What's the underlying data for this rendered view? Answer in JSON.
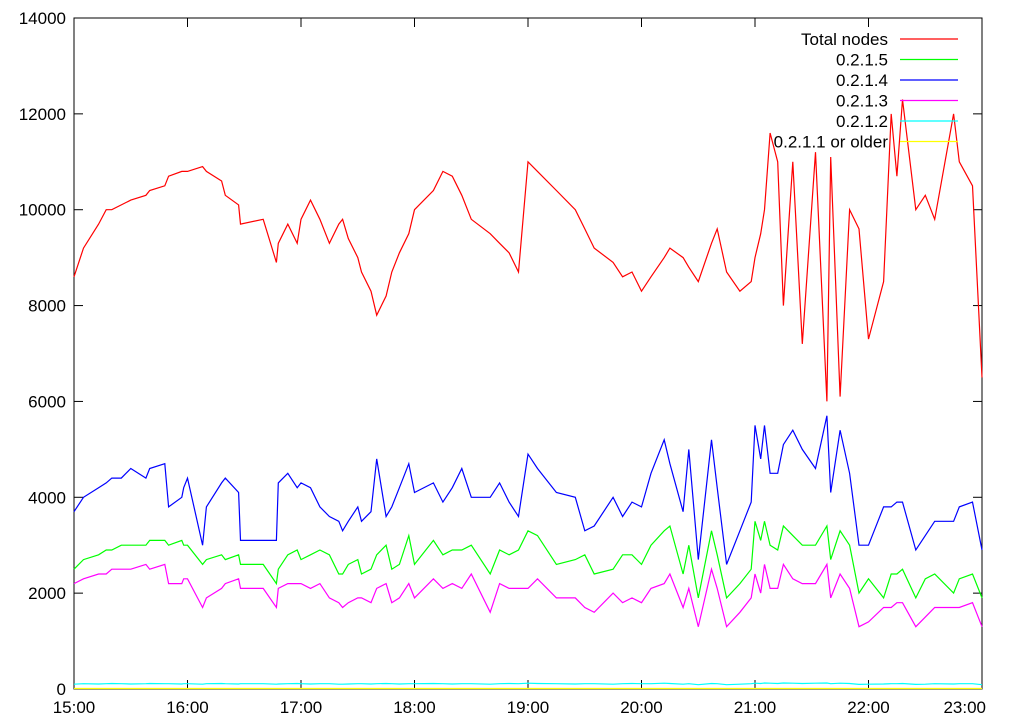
{
  "chart_data": {
    "type": "line",
    "title": "",
    "xlabel": "",
    "ylabel": "",
    "xlim": [
      "15:00",
      "23:00"
    ],
    "ylim": [
      0,
      14000
    ],
    "x_ticks": [
      "15:00",
      "16:00",
      "17:00",
      "18:00",
      "19:00",
      "20:00",
      "21:00",
      "22:00",
      "23:00"
    ],
    "y_ticks": [
      0,
      2000,
      4000,
      6000,
      8000,
      10000,
      12000,
      14000
    ],
    "grid": false,
    "legend_position": "top-right",
    "x": [
      "15:00",
      "15:05",
      "15:13",
      "15:17",
      "15:20",
      "15:25",
      "15:30",
      "15:38",
      "15:40",
      "15:48",
      "15:50",
      "15:57",
      "15:58",
      "16:00",
      "16:08",
      "16:10",
      "16:18",
      "16:20",
      "16:27",
      "16:28",
      "16:40",
      "16:47",
      "16:48",
      "16:53",
      "16:58",
      "17:00",
      "17:05",
      "17:10",
      "17:15",
      "17:20",
      "17:22",
      "17:25",
      "17:30",
      "17:32",
      "17:37",
      "17:40",
      "17:45",
      "17:48",
      "17:52",
      "17:57",
      "18:00",
      "18:10",
      "18:15",
      "18:20",
      "18:25",
      "18:30",
      "18:40",
      "18:45",
      "18:50",
      "18:55",
      "19:00",
      "19:05",
      "19:15",
      "19:25",
      "19:30",
      "19:35",
      "19:45",
      "19:50",
      "19:55",
      "20:00",
      "20:05",
      "20:12",
      "20:15",
      "20:22",
      "20:25",
      "20:30",
      "20:37",
      "20:40",
      "20:45",
      "20:52",
      "20:58",
      "21:00",
      "21:03",
      "21:05",
      "21:08",
      "21:12",
      "21:15",
      "21:20",
      "21:25",
      "21:32",
      "21:38",
      "21:40",
      "21:45",
      "21:50",
      "21:55",
      "22:00",
      "22:08",
      "22:12",
      "22:15",
      "22:18",
      "22:25",
      "22:30",
      "22:35",
      "22:45",
      "22:48",
      "22:55",
      "23:00"
    ],
    "series": [
      {
        "name": "Total nodes",
        "color": "#ff0000",
        "values": [
          8600,
          9200,
          9700,
          10000,
          10000,
          10100,
          10200,
          10300,
          10400,
          10500,
          10700,
          10800,
          10800,
          10800,
          10900,
          10800,
          10600,
          10300,
          10100,
          9700,
          9800,
          8900,
          9300,
          9700,
          9300,
          9800,
          10200,
          9800,
          9300,
          9700,
          9800,
          9400,
          9000,
          8700,
          8300,
          7800,
          8200,
          8700,
          9100,
          9500,
          10000,
          10400,
          10800,
          10700,
          10300,
          9800,
          9500,
          9300,
          9100,
          8700,
          11000,
          10800,
          10400,
          10000,
          9600,
          9200,
          8900,
          8600,
          8700,
          8300,
          8600,
          9000,
          9200,
          9000,
          8800,
          8500,
          9300,
          9600,
          8700,
          8300,
          8500,
          9000,
          9500,
          10000,
          11600,
          11000,
          8000,
          11000,
          7200,
          11200,
          6000,
          11100,
          6100,
          10000,
          9600,
          7300,
          8500,
          12000,
          10700,
          12300,
          10000,
          10300,
          9800,
          12000,
          11000,
          10500,
          6500
        ]
      },
      {
        "name": "0.2.1.5",
        "color": "#00ff00",
        "values": [
          2500,
          2700,
          2800,
          2900,
          2900,
          3000,
          3000,
          3000,
          3100,
          3100,
          3000,
          3100,
          3000,
          3000,
          2600,
          2700,
          2800,
          2700,
          2800,
          2600,
          2600,
          2200,
          2500,
          2800,
          2900,
          2700,
          2800,
          2900,
          2800,
          2400,
          2400,
          2600,
          2700,
          2400,
          2500,
          2800,
          3000,
          2500,
          2600,
          3200,
          2600,
          3100,
          2800,
          2900,
          2900,
          3000,
          2400,
          2900,
          2800,
          2900,
          3300,
          3200,
          2600,
          2700,
          2800,
          2400,
          2500,
          2800,
          2800,
          2600,
          3000,
          3300,
          3400,
          2400,
          3000,
          1900,
          3300,
          2800,
          1900,
          2200,
          2500,
          3500,
          3100,
          3500,
          3000,
          2900,
          3400,
          3200,
          3000,
          3000,
          3400,
          2700,
          3300,
          3000,
          2000,
          2300,
          1900,
          2400,
          2400,
          2500,
          1900,
          2300,
          2400,
          2000,
          2300,
          2400,
          1900
        ]
      },
      {
        "name": "0.2.1.4",
        "color": "#0000ff",
        "values": [
          3700,
          4000,
          4200,
          4300,
          4400,
          4400,
          4600,
          4400,
          4600,
          4700,
          3800,
          4000,
          4200,
          4400,
          3000,
          3800,
          4300,
          4400,
          4100,
          3100,
          3100,
          3100,
          4300,
          4500,
          4200,
          4300,
          4200,
          3800,
          3600,
          3500,
          3300,
          3500,
          3800,
          3500,
          3700,
          4800,
          3600,
          3800,
          4200,
          4700,
          4100,
          4300,
          3900,
          4200,
          4600,
          4000,
          4000,
          4300,
          3900,
          3600,
          4900,
          4600,
          4100,
          4000,
          3300,
          3400,
          4000,
          3600,
          3900,
          3800,
          4500,
          5200,
          4700,
          3700,
          5000,
          2700,
          5200,
          4200,
          2600,
          3300,
          3900,
          5500,
          4800,
          5500,
          4500,
          4500,
          5100,
          5400,
          5000,
          4600,
          5700,
          4100,
          5400,
          4500,
          3000,
          3000,
          3800,
          3800,
          3900,
          3900,
          2900,
          3200,
          3500,
          3500,
          3800,
          3900,
          2900
        ]
      },
      {
        "name": "0.2.1.3",
        "color": "#ff00ff",
        "values": [
          2200,
          2300,
          2400,
          2400,
          2500,
          2500,
          2500,
          2600,
          2500,
          2600,
          2200,
          2200,
          2300,
          2300,
          1700,
          1900,
          2100,
          2200,
          2300,
          2100,
          2100,
          1700,
          2100,
          2200,
          2200,
          2200,
          2100,
          2200,
          1900,
          1800,
          1700,
          1800,
          1900,
          1900,
          1800,
          2100,
          2200,
          1800,
          1900,
          2200,
          1900,
          2300,
          2100,
          2200,
          2100,
          2400,
          1600,
          2200,
          2100,
          2100,
          2100,
          2300,
          1900,
          1900,
          1700,
          1600,
          2000,
          1800,
          1900,
          1800,
          2100,
          2200,
          2400,
          1700,
          2100,
          1300,
          2500,
          2100,
          1300,
          1600,
          1900,
          2400,
          2000,
          2600,
          2100,
          2100,
          2600,
          2300,
          2200,
          2200,
          2600,
          1900,
          2400,
          2100,
          1300,
          1400,
          1700,
          1700,
          1800,
          1800,
          1300,
          1500,
          1700,
          1700,
          1700,
          1800,
          1300
        ]
      },
      {
        "name": "0.2.1.2",
        "color": "#00ffff",
        "values": [
          100,
          110,
          105,
          110,
          115,
          110,
          105,
          110,
          115,
          110,
          110,
          105,
          110,
          110,
          100,
          110,
          115,
          110,
          105,
          110,
          110,
          100,
          105,
          110,
          115,
          110,
          105,
          110,
          110,
          100,
          100,
          105,
          110,
          110,
          105,
          110,
          115,
          110,
          105,
          110,
          110,
          115,
          110,
          105,
          110,
          110,
          100,
          110,
          115,
          110,
          120,
          115,
          110,
          105,
          110,
          110,
          100,
          110,
          115,
          110,
          110,
          120,
          115,
          100,
          110,
          90,
          115,
          110,
          90,
          100,
          110,
          120,
          115,
          125,
          120,
          115,
          125,
          120,
          115,
          120,
          125,
          110,
          120,
          115,
          95,
          100,
          105,
          110,
          110,
          115,
          95,
          100,
          110,
          105,
          110,
          110,
          90
        ]
      },
      {
        "name": "0.2.1.1 or older",
        "color": "#ffff00",
        "values": [
          10,
          10,
          10,
          10,
          10,
          10,
          10,
          10,
          10,
          10,
          10,
          10,
          10,
          10,
          10,
          10,
          10,
          10,
          10,
          10,
          10,
          10,
          10,
          10,
          10,
          10,
          10,
          10,
          10,
          10,
          10,
          10,
          10,
          10,
          10,
          10,
          10,
          10,
          10,
          10,
          10,
          10,
          10,
          10,
          10,
          10,
          10,
          10,
          10,
          10,
          10,
          10,
          10,
          10,
          10,
          10,
          10,
          10,
          10,
          10,
          10,
          10,
          10,
          10,
          10,
          10,
          10,
          10,
          10,
          10,
          10,
          10,
          10,
          10,
          10,
          10,
          10,
          10,
          10,
          10,
          10,
          10,
          10,
          10,
          10,
          10,
          10,
          10,
          10,
          10,
          10,
          10,
          10,
          10,
          10,
          10,
          10
        ]
      }
    ]
  }
}
